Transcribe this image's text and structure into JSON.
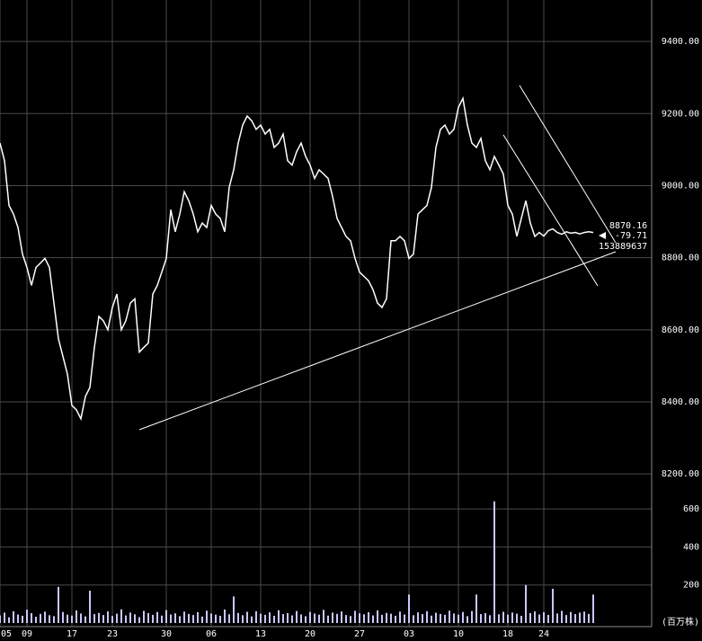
{
  "chart_data": [
    {
      "type": "line",
      "color": "#ffffff",
      "categories": [
        "05",
        null,
        null,
        null,
        null,
        null,
        "09",
        null,
        null,
        null,
        null,
        null,
        null,
        null,
        null,
        null,
        "17",
        null,
        null,
        null,
        null,
        null,
        null,
        null,
        null,
        "23",
        null,
        null,
        null,
        null,
        null,
        null,
        null,
        null,
        null,
        null,
        null,
        "30",
        null,
        null,
        null,
        null,
        null,
        null,
        null,
        null,
        null,
        "06",
        null,
        null,
        null,
        null,
        null,
        null,
        null,
        null,
        null,
        null,
        "13",
        null,
        null,
        null,
        null,
        null,
        null,
        null,
        null,
        null,
        null,
        "20",
        null,
        null,
        null,
        null,
        null,
        null,
        null,
        null,
        null,
        null,
        "27",
        null,
        null,
        null,
        null,
        null,
        null,
        null,
        null,
        null,
        null,
        "03",
        null,
        null,
        null,
        null,
        null,
        null,
        null,
        null,
        null,
        null,
        "10",
        null,
        null,
        null,
        null,
        null,
        null,
        null,
        null,
        null,
        null,
        "18",
        null,
        null,
        null,
        null,
        null,
        null,
        null,
        "24",
        null,
        null,
        null,
        null,
        null,
        null,
        null,
        null,
        null,
        null,
        null
      ],
      "values": [
        9118,
        9069,
        8945,
        8921,
        8884,
        8810,
        8773,
        8723,
        8773,
        8785,
        8798,
        8773,
        8674,
        8575,
        8526,
        8477,
        8390,
        8378,
        8353,
        8415,
        8440,
        8551,
        8637,
        8625,
        8600,
        8662,
        8699,
        8600,
        8625,
        8674,
        8686,
        8538,
        8551,
        8563,
        8699,
        8723,
        8760,
        8798,
        8933,
        8872,
        8921,
        8983,
        8958,
        8921,
        8872,
        8896,
        8884,
        8945,
        8921,
        8909,
        8872,
        8995,
        9044,
        9118,
        9168,
        9193,
        9180,
        9156,
        9168,
        9143,
        9156,
        9106,
        9118,
        9143,
        9069,
        9057,
        9094,
        9118,
        9081,
        9057,
        9020,
        9044,
        9032,
        9020,
        8970,
        8909,
        8884,
        8859,
        8847,
        8798,
        8760,
        8748,
        8736,
        8711,
        8674,
        8662,
        8686,
        8847,
        8847,
        8859,
        8847,
        8798,
        8810,
        8921,
        8933,
        8945,
        8995,
        9106,
        9156,
        9168,
        9143,
        9156,
        9217,
        9242,
        9168,
        9118,
        9106,
        9131,
        9069,
        9044,
        9081,
        9057,
        9032,
        8945,
        8921,
        8859,
        8909,
        8958,
        8896,
        8859,
        8870,
        8860,
        8875,
        8880,
        8870,
        8865,
        8872,
        8868,
        8870,
        8866,
        8870,
        8872,
        8870
      ],
      "ylim": [
        8168,
        9515
      ],
      "yticks": [
        {
          "value": 8200,
          "label": "8200.00"
        },
        {
          "value": 8400,
          "label": "8400.00"
        },
        {
          "value": 8600,
          "label": "8600.00"
        },
        {
          "value": 8800,
          "label": "8800.00"
        },
        {
          "value": 9000,
          "label": "9000.00"
        },
        {
          "value": 9200,
          "label": "9200.00"
        },
        {
          "value": 9400,
          "label": "9400.00"
        }
      ],
      "annotations": [
        "8870.16",
        "-79.71",
        "153889637"
      ]
    },
    {
      "type": "bar",
      "color": "#c8c8ff",
      "values": [
        40,
        55,
        30,
        62,
        45,
        38,
        70,
        52,
        33,
        48,
        60,
        41,
        36,
        190,
        58,
        44,
        39,
        66,
        50,
        35,
        170,
        47,
        53,
        42,
        61,
        37,
        49,
        72,
        40,
        55,
        46,
        31,
        64,
        52,
        43,
        58,
        39,
        68,
        45,
        51,
        36,
        60,
        48,
        42,
        57,
        34,
        65,
        50,
        44,
        38,
        71,
        46,
        140,
        53,
        41,
        59,
        35,
        62,
        49,
        43,
        56,
        38,
        67,
        47,
        52,
        40,
        63,
        45,
        36,
        58,
        50,
        44,
        69,
        39,
        55,
        48,
        61,
        42,
        37,
        64,
        51,
        46,
        57,
        40,
        66,
        43,
        53,
        49,
        38,
        60,
        45,
        150,
        41,
        56,
        47,
        62,
        39,
        54,
        48,
        43,
        65,
        50,
        44,
        58,
        36,
        63,
        150,
        47,
        52,
        41,
        640,
        46,
        59,
        44,
        55,
        49,
        38,
        200,
        52,
        61,
        45,
        57,
        43,
        180,
        50,
        64,
        42,
        58,
        47,
        55,
        60,
        48,
        150
      ],
      "ylim": [
        0,
        700
      ],
      "yticks": [
        200,
        400,
        600
      ],
      "unit": "(百万株)"
    }
  ]
}
